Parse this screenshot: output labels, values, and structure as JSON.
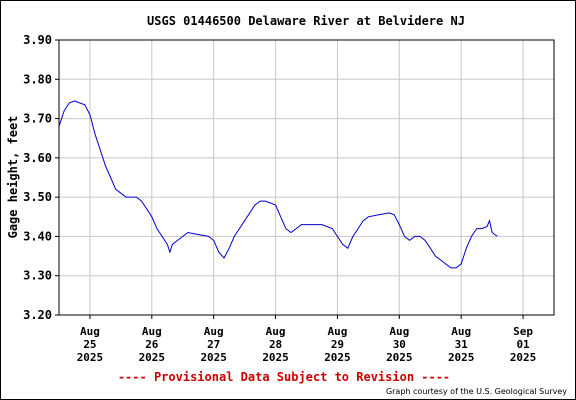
{
  "chart_data": {
    "type": "line",
    "title": "USGS 01446500 Delaware River at Belvidere NJ",
    "ylabel": "Gage height, feet",
    "xlabel": "",
    "ylim": [
      3.2,
      3.9
    ],
    "yticks": [
      "3.20",
      "3.30",
      "3.40",
      "3.50",
      "3.60",
      "3.70",
      "3.80",
      "3.90"
    ],
    "grid": true,
    "xticks": [
      {
        "month": "Aug",
        "day": "25",
        "year": "2025"
      },
      {
        "month": "Aug",
        "day": "26",
        "year": "2025"
      },
      {
        "month": "Aug",
        "day": "27",
        "year": "2025"
      },
      {
        "month": "Aug",
        "day": "28",
        "year": "2025"
      },
      {
        "month": "Aug",
        "day": "29",
        "year": "2025"
      },
      {
        "month": "Aug",
        "day": "30",
        "year": "2025"
      },
      {
        "month": "Aug",
        "day": "31",
        "year": "2025"
      },
      {
        "month": "Sep",
        "day": "01",
        "year": "2025"
      }
    ],
    "xstart": "2025-08-24 12:00",
    "xend": "2025-09-01 12:00",
    "series": [
      {
        "color": "#0000cc",
        "points": [
          [
            "2025-08-24 12:00",
            3.68
          ],
          [
            "2025-08-24 14:00",
            3.72
          ],
          [
            "2025-08-24 16:00",
            3.74
          ],
          [
            "2025-08-24 18:00",
            3.745
          ],
          [
            "2025-08-24 20:00",
            3.74
          ],
          [
            "2025-08-24 22:00",
            3.735
          ],
          [
            "2025-08-25 00:00",
            3.71
          ],
          [
            "2025-08-25 02:00",
            3.66
          ],
          [
            "2025-08-25 04:00",
            3.62
          ],
          [
            "2025-08-25 06:00",
            3.58
          ],
          [
            "2025-08-25 08:00",
            3.55
          ],
          [
            "2025-08-25 10:00",
            3.52
          ],
          [
            "2025-08-25 12:00",
            3.51
          ],
          [
            "2025-08-25 14:00",
            3.5
          ],
          [
            "2025-08-25 18:00",
            3.5
          ],
          [
            "2025-08-25 20:00",
            3.49
          ],
          [
            "2025-08-25 22:00",
            3.47
          ],
          [
            "2025-08-26 00:00",
            3.45
          ],
          [
            "2025-08-26 02:00",
            3.42
          ],
          [
            "2025-08-26 04:00",
            3.4
          ],
          [
            "2025-08-26 06:00",
            3.38
          ],
          [
            "2025-08-26 07:00",
            3.36
          ],
          [
            "2025-08-26 08:00",
            3.38
          ],
          [
            "2025-08-26 10:00",
            3.39
          ],
          [
            "2025-08-26 12:00",
            3.4
          ],
          [
            "2025-08-26 14:00",
            3.41
          ],
          [
            "2025-08-26 18:00",
            3.405
          ],
          [
            "2025-08-26 22:00",
            3.4
          ],
          [
            "2025-08-27 00:00",
            3.39
          ],
          [
            "2025-08-27 02:00",
            3.36
          ],
          [
            "2025-08-27 04:00",
            3.345
          ],
          [
            "2025-08-27 06:00",
            3.37
          ],
          [
            "2025-08-27 08:00",
            3.4
          ],
          [
            "2025-08-27 10:00",
            3.42
          ],
          [
            "2025-08-27 12:00",
            3.44
          ],
          [
            "2025-08-27 14:00",
            3.46
          ],
          [
            "2025-08-27 16:00",
            3.48
          ],
          [
            "2025-08-27 18:00",
            3.49
          ],
          [
            "2025-08-27 20:00",
            3.49
          ],
          [
            "2025-08-27 22:00",
            3.485
          ],
          [
            "2025-08-28 00:00",
            3.48
          ],
          [
            "2025-08-28 02:00",
            3.45
          ],
          [
            "2025-08-28 04:00",
            3.42
          ],
          [
            "2025-08-28 06:00",
            3.41
          ],
          [
            "2025-08-28 08:00",
            3.42
          ],
          [
            "2025-08-28 10:00",
            3.43
          ],
          [
            "2025-08-28 14:00",
            3.43
          ],
          [
            "2025-08-28 18:00",
            3.43
          ],
          [
            "2025-08-28 22:00",
            3.42
          ],
          [
            "2025-08-29 00:00",
            3.4
          ],
          [
            "2025-08-29 02:00",
            3.38
          ],
          [
            "2025-08-29 04:00",
            3.37
          ],
          [
            "2025-08-29 06:00",
            3.4
          ],
          [
            "2025-08-29 08:00",
            3.42
          ],
          [
            "2025-08-29 10:00",
            3.44
          ],
          [
            "2025-08-29 12:00",
            3.45
          ],
          [
            "2025-08-29 16:00",
            3.455
          ],
          [
            "2025-08-29 20:00",
            3.46
          ],
          [
            "2025-08-29 22:00",
            3.455
          ],
          [
            "2025-08-30 00:00",
            3.43
          ],
          [
            "2025-08-30 02:00",
            3.4
          ],
          [
            "2025-08-30 04:00",
            3.39
          ],
          [
            "2025-08-30 06:00",
            3.4
          ],
          [
            "2025-08-30 08:00",
            3.4
          ],
          [
            "2025-08-30 10:00",
            3.39
          ],
          [
            "2025-08-30 12:00",
            3.37
          ],
          [
            "2025-08-30 14:00",
            3.35
          ],
          [
            "2025-08-30 16:00",
            3.34
          ],
          [
            "2025-08-30 18:00",
            3.33
          ],
          [
            "2025-08-30 20:00",
            3.32
          ],
          [
            "2025-08-30 22:00",
            3.32
          ],
          [
            "2025-08-31 00:00",
            3.33
          ],
          [
            "2025-08-31 02:00",
            3.37
          ],
          [
            "2025-08-31 04:00",
            3.4
          ],
          [
            "2025-08-31 06:00",
            3.42
          ],
          [
            "2025-08-31 08:00",
            3.42
          ],
          [
            "2025-08-31 10:00",
            3.425
          ],
          [
            "2025-08-31 11:00",
            3.44
          ],
          [
            "2025-08-31 12:00",
            3.41
          ],
          [
            "2025-08-31 14:00",
            3.4
          ]
        ]
      }
    ]
  },
  "footer": {
    "provisional": "---- Provisional Data Subject to Revision ----",
    "courtesy": "Graph courtesy of the U.S. Geological Survey"
  },
  "colors": {
    "line": "#0000cc",
    "grid": "#c8c8c8",
    "axis": "#000000",
    "provisional": "#cc0000"
  }
}
